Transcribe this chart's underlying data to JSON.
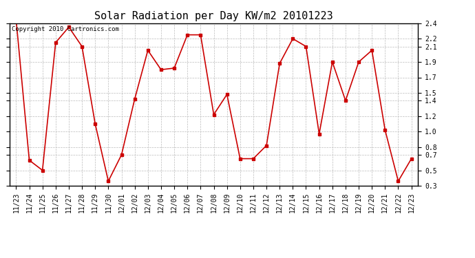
{
  "title": "Solar Radiation per Day KW/m2 20101223",
  "copyright_text": "Copyright 2010 Cartronics.com",
  "labels": [
    "11/23",
    "11/24",
    "11/25",
    "11/26",
    "11/27",
    "11/28",
    "11/29",
    "11/30",
    "12/01",
    "12/02",
    "12/03",
    "12/04",
    "12/05",
    "12/06",
    "12/07",
    "12/08",
    "12/09",
    "12/10",
    "12/11",
    "12/12",
    "12/13",
    "12/14",
    "12/15",
    "12/16",
    "12/17",
    "12/18",
    "12/19",
    "12/20",
    "12/21",
    "12/22",
    "12/23"
  ],
  "values": [
    2.45,
    0.63,
    0.5,
    2.15,
    2.35,
    2.1,
    1.1,
    0.36,
    0.7,
    1.42,
    2.05,
    1.8,
    1.82,
    2.25,
    2.25,
    1.22,
    1.48,
    0.65,
    0.65,
    0.82,
    1.88,
    2.2,
    2.1,
    0.97,
    1.9,
    1.4,
    1.9,
    2.05,
    1.02,
    0.36,
    0.65
  ],
  "line_color": "#cc0000",
  "marker": "s",
  "marker_size": 3,
  "bg_color": "#ffffff",
  "plot_bg_color": "#ffffff",
  "grid_color": "#bbbbbb",
  "ylim": [
    0.3,
    2.4
  ],
  "ytick_positions": [
    0.3,
    0.5,
    0.7,
    0.8,
    1.0,
    1.2,
    1.4,
    1.5,
    1.7,
    1.9,
    2.1,
    2.2,
    2.4
  ],
  "ytick_labels": [
    "0.3",
    "0.5",
    "0.7",
    "0.8",
    "1.0",
    "1.2",
    "1.4",
    "1.5",
    "1.7",
    "1.9",
    "2.1",
    "2.2",
    "2.4"
  ],
  "title_fontsize": 11,
  "tick_fontsize": 7,
  "copyright_fontsize": 6.5
}
